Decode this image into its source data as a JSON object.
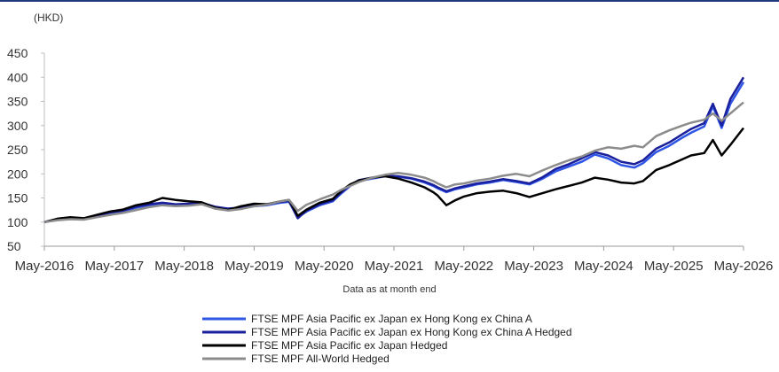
{
  "chart_data": {
    "type": "line",
    "unit_label": "(HKD)",
    "note": "Data as at month end",
    "ylim": [
      50,
      450
    ],
    "y_ticks": [
      "50",
      "100",
      "150",
      "200",
      "250",
      "300",
      "350",
      "400",
      "450"
    ],
    "x_ticks": [
      "May-2016",
      "May-2017",
      "May-2018",
      "May-2019",
      "May-2020",
      "May-2021",
      "May-2022",
      "May-2023",
      "May-2024",
      "May-2025",
      "May-2026"
    ],
    "grid": false,
    "legend_position": "bottom",
    "x_start": "May-2016",
    "x_end": "May-2026",
    "series": [
      {
        "name": "FTSE MPF Asia Pacific ex Japan ex Hong Kong ex China A",
        "color": "#2f55e6",
        "width": 2.5,
        "points": [
          [
            0,
            100
          ],
          [
            3,
            105
          ],
          [
            6,
            107
          ],
          [
            9,
            106
          ],
          [
            12,
            112
          ],
          [
            15,
            118
          ],
          [
            18,
            122
          ],
          [
            21,
            130
          ],
          [
            24,
            135
          ],
          [
            27,
            138
          ],
          [
            30,
            135
          ],
          [
            33,
            136
          ],
          [
            36,
            138
          ],
          [
            39,
            130
          ],
          [
            42,
            126
          ],
          [
            45,
            128
          ],
          [
            48,
            133
          ],
          [
            51,
            135
          ],
          [
            54,
            140
          ],
          [
            56,
            142
          ],
          [
            58,
            110
          ],
          [
            60,
            122
          ],
          [
            63,
            135
          ],
          [
            66,
            143
          ],
          [
            68,
            160
          ],
          [
            70,
            175
          ],
          [
            72,
            185
          ],
          [
            75,
            190
          ],
          [
            78,
            195
          ],
          [
            81,
            194
          ],
          [
            84,
            190
          ],
          [
            87,
            182
          ],
          [
            89,
            175
          ],
          [
            90,
            170
          ],
          [
            92,
            162
          ],
          [
            94,
            168
          ],
          [
            96,
            172
          ],
          [
            99,
            178
          ],
          [
            102,
            182
          ],
          [
            105,
            187
          ],
          [
            108,
            183
          ],
          [
            111,
            178
          ],
          [
            114,
            190
          ],
          [
            117,
            205
          ],
          [
            120,
            215
          ],
          [
            123,
            225
          ],
          [
            126,
            240
          ],
          [
            129,
            232
          ],
          [
            132,
            218
          ],
          [
            135,
            213
          ],
          [
            137,
            222
          ],
          [
            140,
            245
          ],
          [
            143,
            258
          ],
          [
            146,
            275
          ],
          [
            148,
            285
          ],
          [
            151,
            298
          ],
          [
            153,
            340
          ],
          [
            155,
            295
          ],
          [
            157,
            345
          ],
          [
            160,
            390
          ]
        ]
      },
      {
        "name": "FTSE MPF Asia Pacific ex Japan ex Hong Kong ex China A Hedged",
        "color": "#1a1f9c",
        "width": 2.5,
        "points": [
          [
            0,
            100
          ],
          [
            3,
            106
          ],
          [
            6,
            108
          ],
          [
            9,
            107
          ],
          [
            12,
            113
          ],
          [
            15,
            120
          ],
          [
            18,
            124
          ],
          [
            21,
            132
          ],
          [
            24,
            137
          ],
          [
            27,
            140
          ],
          [
            30,
            137
          ],
          [
            33,
            138
          ],
          [
            36,
            140
          ],
          [
            39,
            132
          ],
          [
            42,
            128
          ],
          [
            45,
            130
          ],
          [
            48,
            135
          ],
          [
            51,
            137
          ],
          [
            54,
            142
          ],
          [
            56,
            144
          ],
          [
            58,
            108
          ],
          [
            60,
            124
          ],
          [
            63,
            137
          ],
          [
            66,
            145
          ],
          [
            68,
            162
          ],
          [
            70,
            177
          ],
          [
            72,
            187
          ],
          [
            75,
            192
          ],
          [
            78,
            196
          ],
          [
            81,
            195
          ],
          [
            84,
            191
          ],
          [
            87,
            184
          ],
          [
            89,
            177
          ],
          [
            90,
            172
          ],
          [
            92,
            164
          ],
          [
            94,
            170
          ],
          [
            96,
            174
          ],
          [
            99,
            180
          ],
          [
            102,
            184
          ],
          [
            105,
            189
          ],
          [
            108,
            185
          ],
          [
            111,
            180
          ],
          [
            114,
            193
          ],
          [
            117,
            210
          ],
          [
            120,
            220
          ],
          [
            123,
            232
          ],
          [
            126,
            245
          ],
          [
            129,
            238
          ],
          [
            132,
            225
          ],
          [
            135,
            220
          ],
          [
            137,
            228
          ],
          [
            140,
            252
          ],
          [
            143,
            265
          ],
          [
            146,
            282
          ],
          [
            148,
            293
          ],
          [
            151,
            305
          ],
          [
            153,
            345
          ],
          [
            155,
            300
          ],
          [
            157,
            355
          ],
          [
            160,
            400
          ]
        ]
      },
      {
        "name": "FTSE MPF Asia Pacific ex Japan Hedged",
        "color": "#000000",
        "width": 2.5,
        "points": [
          [
            0,
            100
          ],
          [
            3,
            107
          ],
          [
            6,
            110
          ],
          [
            9,
            108
          ],
          [
            12,
            115
          ],
          [
            15,
            122
          ],
          [
            18,
            126
          ],
          [
            21,
            135
          ],
          [
            24,
            140
          ],
          [
            27,
            150
          ],
          [
            30,
            146
          ],
          [
            33,
            143
          ],
          [
            36,
            141
          ],
          [
            39,
            130
          ],
          [
            42,
            125
          ],
          [
            45,
            133
          ],
          [
            48,
            138
          ],
          [
            51,
            137
          ],
          [
            54,
            143
          ],
          [
            56,
            146
          ],
          [
            58,
            113
          ],
          [
            60,
            126
          ],
          [
            63,
            140
          ],
          [
            66,
            148
          ],
          [
            68,
            165
          ],
          [
            70,
            178
          ],
          [
            72,
            186
          ],
          [
            75,
            192
          ],
          [
            78,
            195
          ],
          [
            81,
            190
          ],
          [
            84,
            182
          ],
          [
            87,
            172
          ],
          [
            89,
            162
          ],
          [
            90,
            155
          ],
          [
            92,
            135
          ],
          [
            94,
            145
          ],
          [
            96,
            153
          ],
          [
            99,
            160
          ],
          [
            102,
            163
          ],
          [
            105,
            165
          ],
          [
            108,
            160
          ],
          [
            111,
            152
          ],
          [
            114,
            160
          ],
          [
            117,
            168
          ],
          [
            120,
            175
          ],
          [
            123,
            182
          ],
          [
            126,
            192
          ],
          [
            129,
            188
          ],
          [
            132,
            182
          ],
          [
            135,
            180
          ],
          [
            137,
            185
          ],
          [
            140,
            208
          ],
          [
            143,
            218
          ],
          [
            146,
            230
          ],
          [
            148,
            238
          ],
          [
            151,
            243
          ],
          [
            153,
            270
          ],
          [
            155,
            238
          ],
          [
            157,
            260
          ],
          [
            160,
            295
          ]
        ]
      },
      {
        "name": "FTSE MPF All-World Hedged",
        "color": "#8c8c8c",
        "width": 2.5,
        "points": [
          [
            0,
            100
          ],
          [
            3,
            104
          ],
          [
            6,
            106
          ],
          [
            9,
            105
          ],
          [
            12,
            110
          ],
          [
            15,
            115
          ],
          [
            18,
            119
          ],
          [
            21,
            125
          ],
          [
            24,
            131
          ],
          [
            27,
            135
          ],
          [
            30,
            133
          ],
          [
            33,
            134
          ],
          [
            36,
            137
          ],
          [
            39,
            128
          ],
          [
            42,
            124
          ],
          [
            45,
            127
          ],
          [
            48,
            133
          ],
          [
            51,
            136
          ],
          [
            54,
            143
          ],
          [
            56,
            146
          ],
          [
            58,
            123
          ],
          [
            60,
            136
          ],
          [
            63,
            147
          ],
          [
            66,
            157
          ],
          [
            68,
            167
          ],
          [
            70,
            175
          ],
          [
            72,
            183
          ],
          [
            75,
            192
          ],
          [
            78,
            198
          ],
          [
            81,
            202
          ],
          [
            84,
            198
          ],
          [
            87,
            192
          ],
          [
            89,
            185
          ],
          [
            90,
            180
          ],
          [
            92,
            172
          ],
          [
            94,
            178
          ],
          [
            96,
            180
          ],
          [
            99,
            186
          ],
          [
            102,
            190
          ],
          [
            105,
            196
          ],
          [
            108,
            200
          ],
          [
            111,
            195
          ],
          [
            114,
            207
          ],
          [
            117,
            218
          ],
          [
            120,
            228
          ],
          [
            123,
            236
          ],
          [
            126,
            248
          ],
          [
            129,
            255
          ],
          [
            132,
            252
          ],
          [
            135,
            258
          ],
          [
            137,
            255
          ],
          [
            140,
            278
          ],
          [
            143,
            290
          ],
          [
            146,
            300
          ],
          [
            148,
            306
          ],
          [
            151,
            312
          ],
          [
            153,
            325
          ],
          [
            155,
            310
          ],
          [
            157,
            325
          ],
          [
            160,
            348
          ]
        ]
      }
    ]
  }
}
